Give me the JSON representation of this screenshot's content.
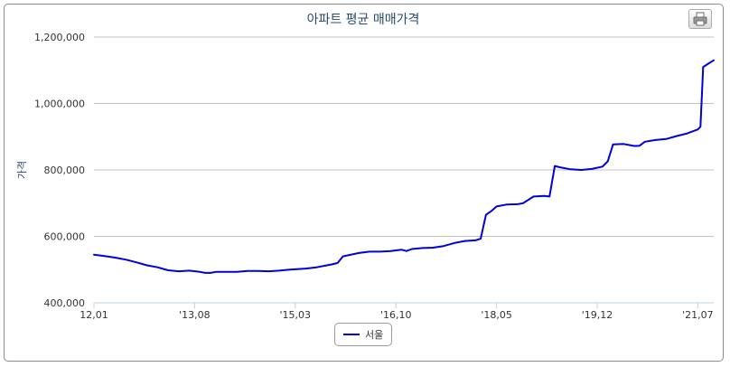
{
  "chart_data": {
    "type": "line",
    "title": "아파트 평균 매매가격",
    "ylabel": "가격",
    "xlabel": "",
    "ylim": [
      400000,
      1200000
    ],
    "yticks": [
      400000,
      600000,
      800000,
      1000000,
      1200000
    ],
    "ytick_labels": [
      "400,000",
      "600,000",
      "800,000",
      "1,000,000",
      "1,200,000"
    ],
    "xticks": [
      {
        "label": "12,01",
        "month": 0
      },
      {
        "label": "'13,08",
        "month": 19
      },
      {
        "label": "'15,03",
        "month": 38
      },
      {
        "label": "'16,10",
        "month": 57
      },
      {
        "label": "'18,05",
        "month": 76
      },
      {
        "label": "'19,12",
        "month": 95
      },
      {
        "label": "'21,07",
        "month": 114
      }
    ],
    "grid": true,
    "legend_position": "bottom-center",
    "series": [
      {
        "name": "서울",
        "color": "#0000dd",
        "points": [
          [
            0,
            545000
          ],
          [
            2,
            541000
          ],
          [
            4,
            536000
          ],
          [
            6,
            530000
          ],
          [
            8,
            522000
          ],
          [
            10,
            513000
          ],
          [
            12,
            507000
          ],
          [
            14,
            498000
          ],
          [
            16,
            495000
          ],
          [
            18,
            497000
          ],
          [
            20,
            493000
          ],
          [
            21,
            490000
          ],
          [
            22,
            490000
          ],
          [
            23,
            493000
          ],
          [
            25,
            493000
          ],
          [
            27,
            493000
          ],
          [
            29,
            496000
          ],
          [
            31,
            496000
          ],
          [
            33,
            495000
          ],
          [
            35,
            497000
          ],
          [
            37,
            500000
          ],
          [
            38,
            501000
          ],
          [
            40,
            503000
          ],
          [
            42,
            507000
          ],
          [
            44,
            513000
          ],
          [
            45,
            516000
          ],
          [
            46,
            520000
          ],
          [
            47,
            540000
          ],
          [
            48,
            543000
          ],
          [
            50,
            550000
          ],
          [
            52,
            554000
          ],
          [
            54,
            554000
          ],
          [
            56,
            556000
          ],
          [
            58,
            560000
          ],
          [
            59,
            556000
          ],
          [
            60,
            562000
          ],
          [
            62,
            565000
          ],
          [
            64,
            566000
          ],
          [
            66,
            571000
          ],
          [
            68,
            580000
          ],
          [
            70,
            586000
          ],
          [
            72,
            588000
          ],
          [
            73,
            593000
          ],
          [
            74,
            665000
          ],
          [
            75,
            676000
          ],
          [
            76,
            690000
          ],
          [
            78,
            696000
          ],
          [
            80,
            697000
          ],
          [
            81,
            700000
          ],
          [
            83,
            720000
          ],
          [
            85,
            722000
          ],
          [
            86,
            720000
          ],
          [
            87,
            812000
          ],
          [
            88,
            808000
          ],
          [
            90,
            802000
          ],
          [
            92,
            800000
          ],
          [
            94,
            803000
          ],
          [
            96,
            810000
          ],
          [
            97,
            826000
          ],
          [
            98,
            877000
          ],
          [
            100,
            878000
          ],
          [
            102,
            872000
          ],
          [
            103,
            873000
          ],
          [
            104,
            885000
          ],
          [
            106,
            890000
          ],
          [
            108,
            893000
          ],
          [
            110,
            902000
          ],
          [
            112,
            910000
          ],
          [
            114,
            922000
          ],
          [
            114.5,
            930000
          ],
          [
            115,
            1110000
          ],
          [
            116,
            1120000
          ],
          [
            117,
            1130000
          ]
        ]
      }
    ]
  }
}
